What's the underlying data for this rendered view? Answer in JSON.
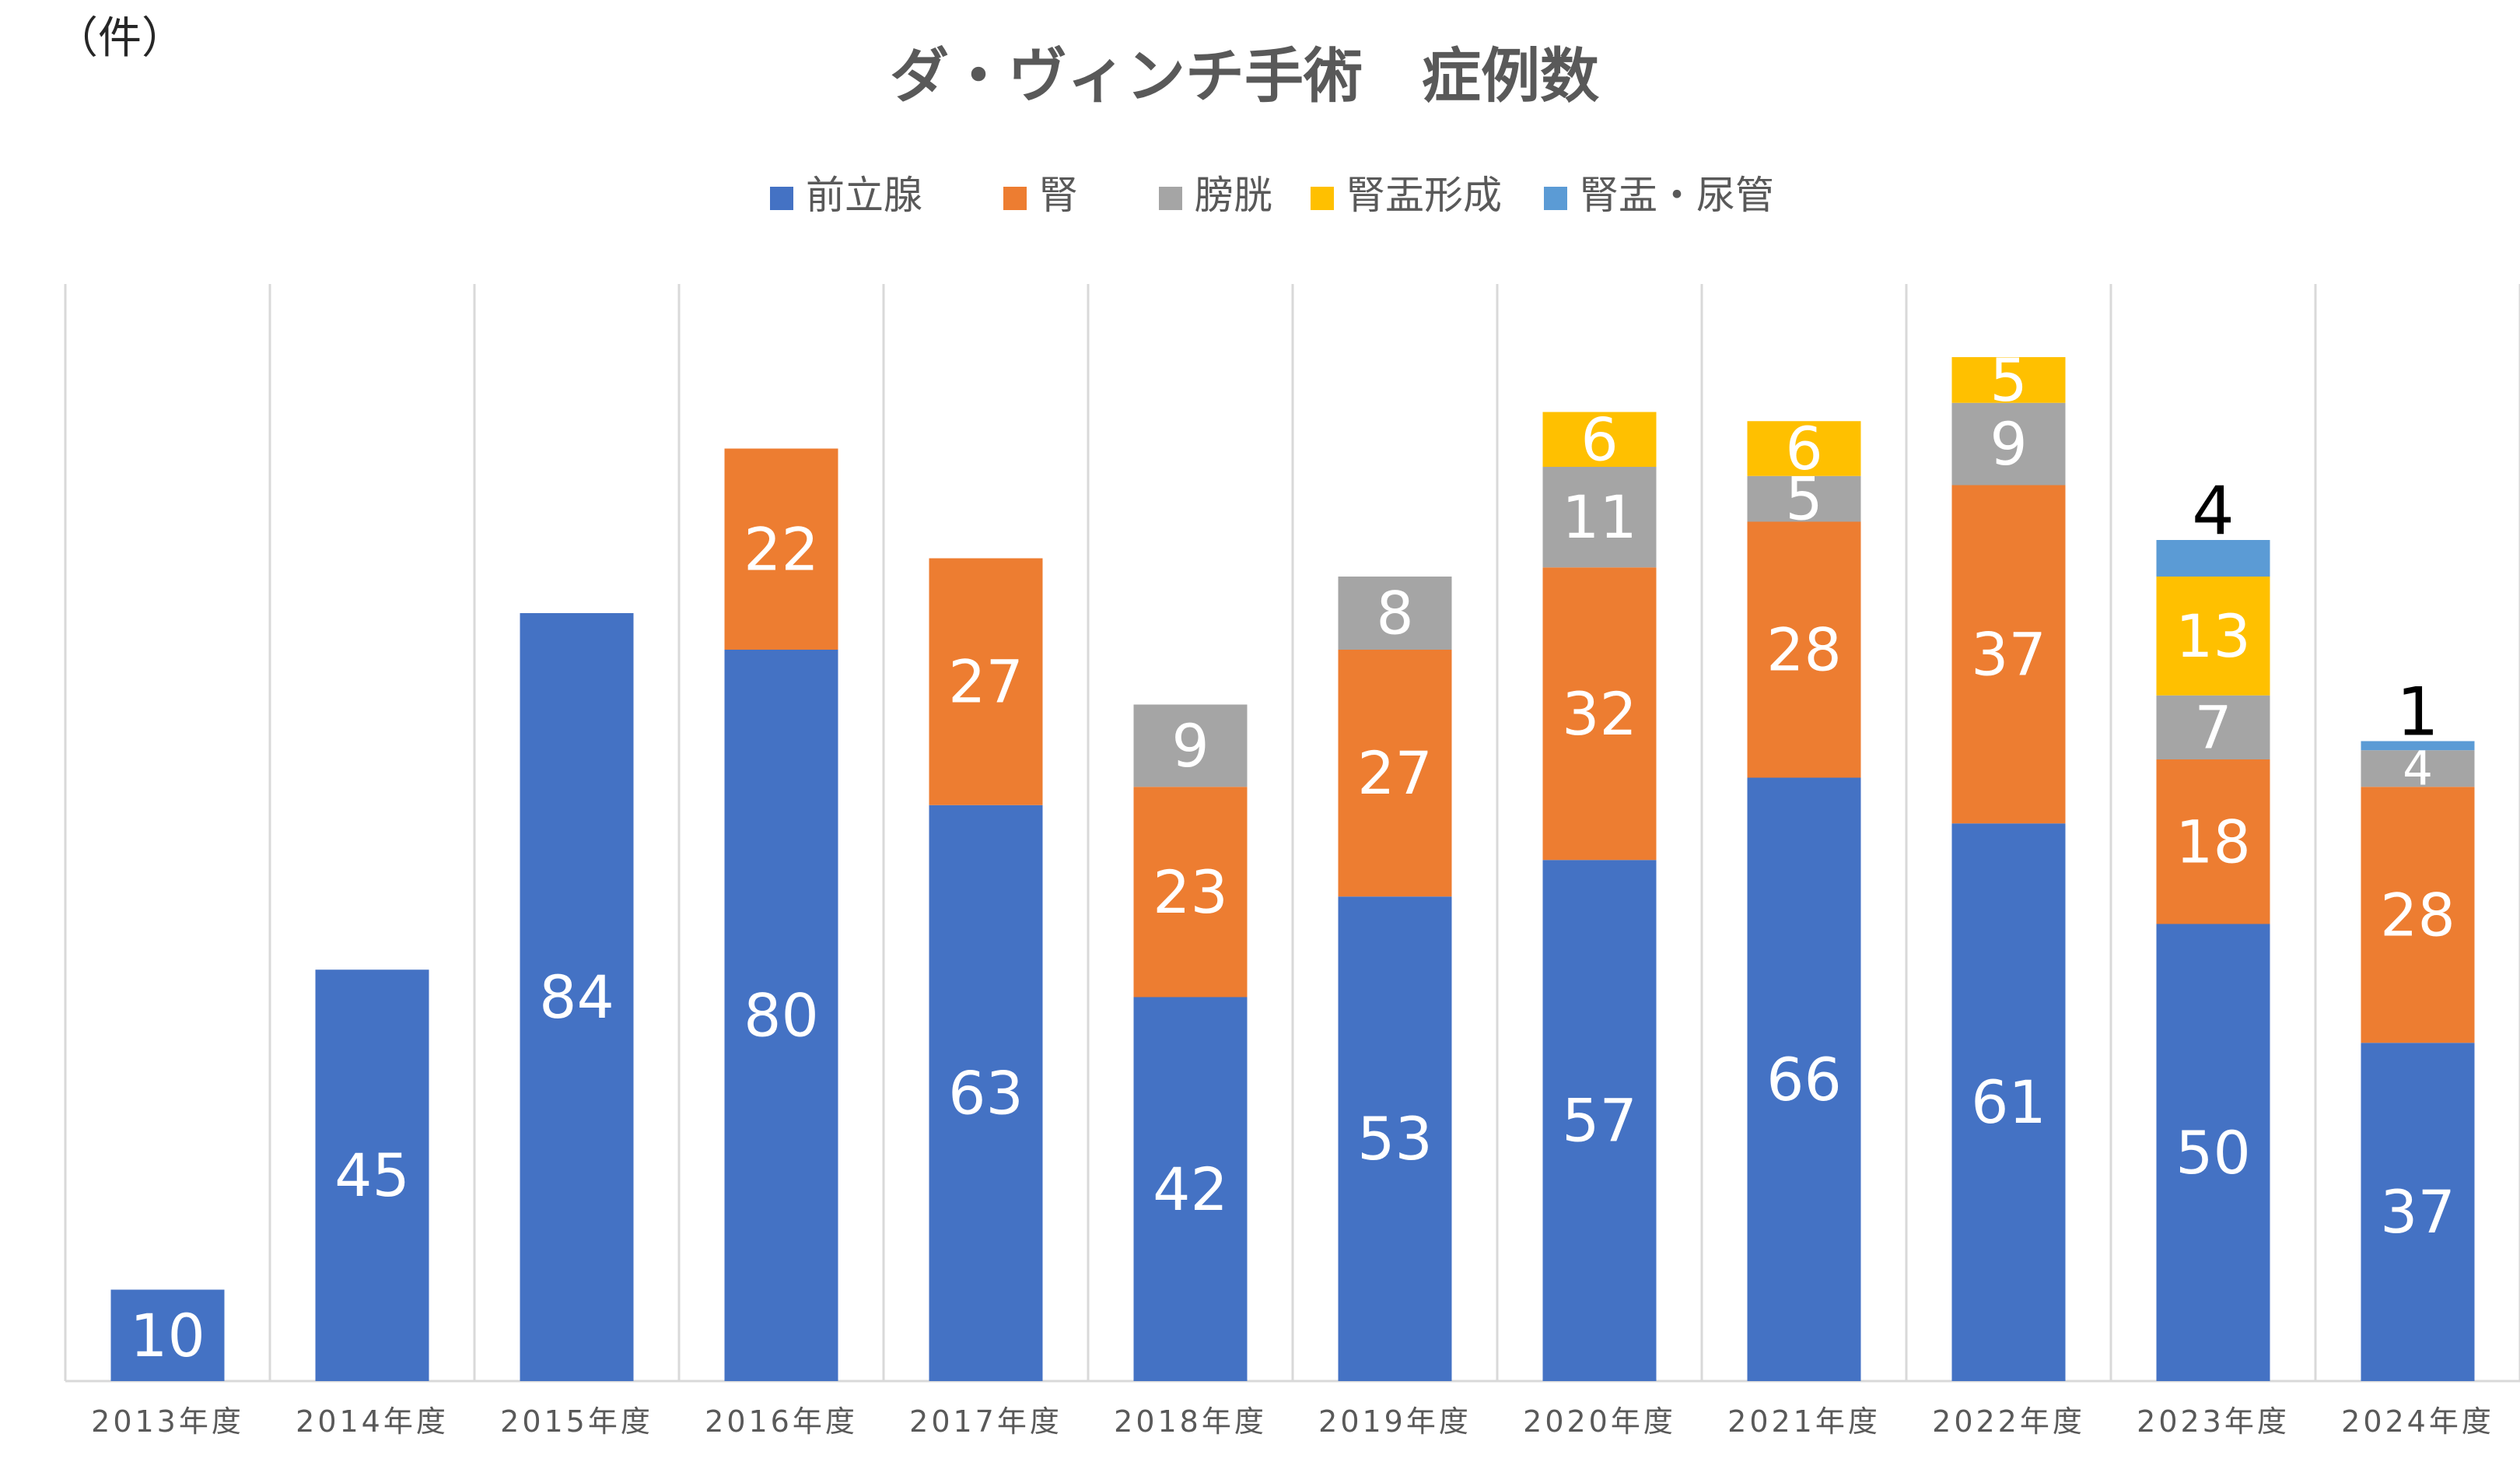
{
  "chart_data": {
    "type": "bar",
    "stacked": true,
    "title": "ダ・ヴィンチ手術　症例数",
    "unit_label": "（件）",
    "categories": [
      "2013年度",
      "2014年度",
      "2015年度",
      "2016年度",
      "2017年度",
      "2018年度",
      "2019年度",
      "2020年度",
      "2021年度",
      "2022年度",
      "2023年度",
      "2024年度"
    ],
    "series": [
      {
        "name": "前立腺",
        "color": "#4472C4",
        "values": [
          10,
          45,
          84,
          80,
          63,
          42,
          53,
          57,
          66,
          61,
          50,
          37
        ]
      },
      {
        "name": "腎",
        "color": "#ED7D31",
        "values": [
          0,
          0,
          0,
          22,
          27,
          23,
          27,
          32,
          28,
          37,
          18,
          28
        ]
      },
      {
        "name": "膀胱",
        "color": "#A5A5A5",
        "values": [
          0,
          0,
          0,
          0,
          0,
          9,
          8,
          11,
          5,
          9,
          7,
          4
        ]
      },
      {
        "name": "腎盂形成",
        "color": "#FFC000",
        "values": [
          0,
          0,
          0,
          0,
          0,
          0,
          0,
          6,
          6,
          5,
          13,
          0
        ]
      },
      {
        "name": "腎盂・尿管",
        "color": "#5B9BD5",
        "values": [
          0,
          0,
          0,
          0,
          0,
          0,
          0,
          0,
          0,
          0,
          4,
          1
        ]
      }
    ],
    "ylim": [
      0,
      120
    ],
    "grid": "vertical",
    "legend_position": "top"
  }
}
